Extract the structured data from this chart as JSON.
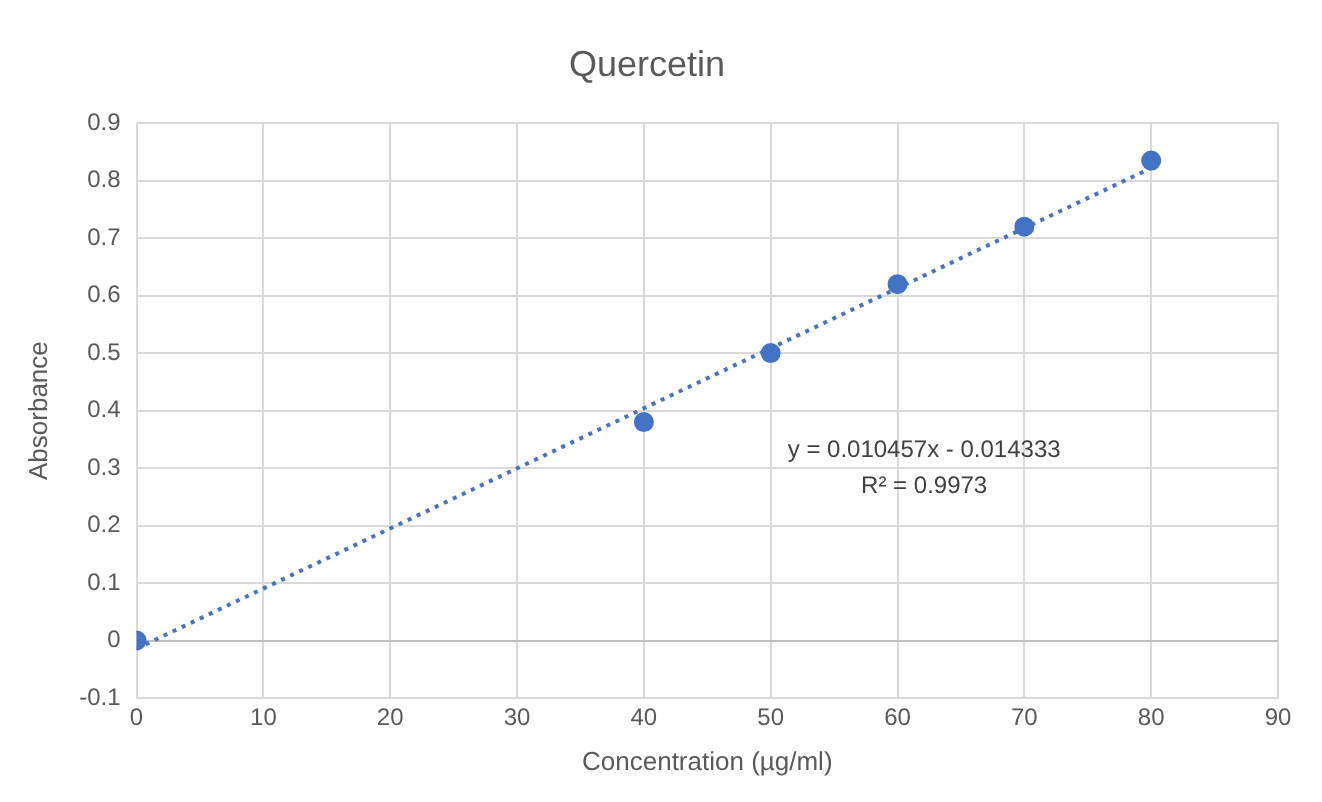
{
  "chart_data": {
    "type": "scatter",
    "title": "Quercetin",
    "xlabel": "Concentration (µg/ml)",
    "ylabel": "Absorbance",
    "series": [
      {
        "type": "scatter",
        "color": "#4472c4",
        "x": [
          0,
          40,
          50,
          60,
          70,
          80
        ],
        "values": [
          0,
          0.38,
          0.5,
          0.62,
          0.72,
          0.835
        ],
        "marker": "circle"
      },
      {
        "type": "line",
        "color": "#4472c4",
        "x": [
          0,
          80
        ],
        "values": [
          -0.014,
          0.822
        ],
        "line_style": "dotted",
        "marker": "none"
      }
    ],
    "xlim": [
      0,
      90
    ],
    "xticks": [
      0,
      10,
      20,
      30,
      40,
      50,
      60,
      70,
      80,
      90
    ],
    "ylim": [
      -0.1,
      0.9
    ],
    "yticks": [
      -0.1,
      0,
      0.1,
      0.2,
      0.3,
      0.4,
      0.5,
      0.6,
      0.7,
      0.8,
      0.9
    ],
    "grid": true,
    "legend": false,
    "annotations": [
      "y = 0.010457x - 0.014333",
      "R² = 0.9973"
    ]
  }
}
